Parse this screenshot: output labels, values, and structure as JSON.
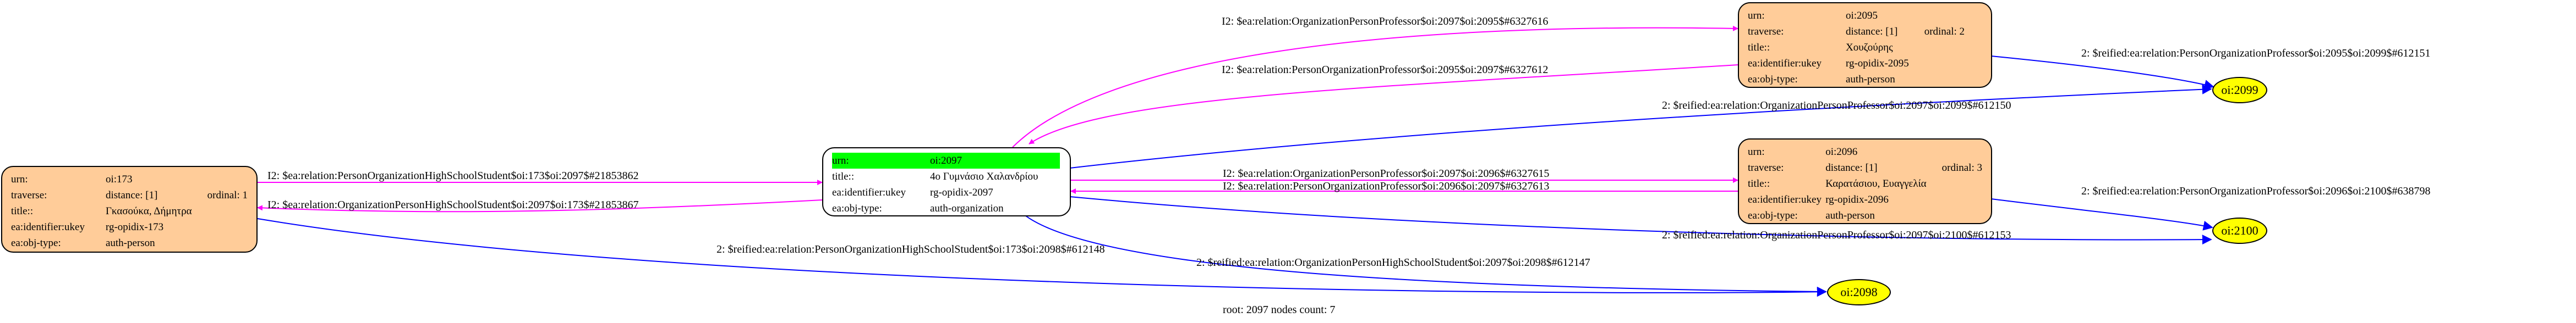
{
  "root_label": "root: 2097 nodes count: 7",
  "colors": {
    "node_fill": "#ffcc99",
    "root_highlight": "#00ff00",
    "ellipse_fill": "#ffff00",
    "edge_ea": "#ff00ff",
    "edge_reified": "#0000ff"
  },
  "nodes": {
    "n173": {
      "urn_k": "urn:",
      "urn_v": "oi:173",
      "trav_k": "traverse:",
      "trav_v": "distance: [1]",
      "ord": "ordinal: 1",
      "title_k": "title::",
      "title_v": "Γκασούκα, Δήμητρα",
      "ukey_k": "ea:identifier:ukey",
      "ukey_v": "rg-opidix-173",
      "type_k": "ea:obj-type:",
      "type_v": "auth-person"
    },
    "n2097": {
      "urn_k": "urn:",
      "urn_v": "oi:2097",
      "title_k": "title::",
      "title_v": "4ο Γυμνάσιο Χαλανδρίου",
      "ukey_k": "ea:identifier:ukey",
      "ukey_v": "rg-opidix-2097",
      "type_k": "ea:obj-type:",
      "type_v": "auth-organization"
    },
    "n2095": {
      "urn_k": "urn:",
      "urn_v": "oi:2095",
      "trav_k": "traverse:",
      "trav_v": "distance: [1]",
      "ord": "ordinal: 2",
      "title_k": "title::",
      "title_v": "Χουζούρης",
      "ukey_k": "ea:identifier:ukey",
      "ukey_v": "rg-opidix-2095",
      "type_k": "ea:obj-type:",
      "type_v": "auth-person"
    },
    "n2096": {
      "urn_k": "urn:",
      "urn_v": "oi:2096",
      "trav_k": "traverse:",
      "trav_v": "distance: [1]",
      "ord": "ordinal: 3",
      "title_k": "title::",
      "title_v": "Καρατάσιου, Ευαγγελία",
      "ukey_k": "ea:identifier:ukey",
      "ukey_v": "rg-opidix-2096",
      "type_k": "ea:obj-type:",
      "type_v": "auth-person"
    }
  },
  "ellipses": {
    "e2099": "oi:2099",
    "e2100": "oi:2100",
    "e2098": "oi:2098"
  },
  "edges": {
    "e1": "I2: $ea:relation:OrganizationPersonProfessor$oi:2097$oi:2095$#6327616",
    "e2": "I2: $ea:relation:PersonOrganizationProfessor$oi:2095$oi:2097$#6327612",
    "e3": "2: $reified:ea:relation:PersonOrganizationProfessor$oi:2095$oi:2099$#612151",
    "e4": "2: $reified:ea:relation:OrganizationPersonProfessor$oi:2097$oi:2099$#612150",
    "e5": "I2: $ea:relation:PersonOrganizationHighSchoolStudent$oi:173$oi:2097$#21853862",
    "e6": "I2: $ea:relation:OrganizationPersonHighSchoolStudent$oi:2097$oi:173$#21853867",
    "e7": "I2: $ea:relation:OrganizationPersonProfessor$oi:2097$oi:2096$#6327615",
    "e8": "I2: $ea:relation:PersonOrganizationProfessor$oi:2096$oi:2097$#6327613",
    "e9": "2: $reified:ea:relation:PersonOrganizationProfessor$oi:2096$oi:2100$#638798",
    "e10": "2: $reified:ea:relation:OrganizationPersonProfessor$oi:2097$oi:2100$#612153",
    "e11": "2: $reified:ea:relation:PersonOrganizationHighSchoolStudent$oi:173$oi:2098$#612148",
    "e12": "2: $reified:ea:relation:OrganizationPersonHighSchoolStudent$oi:2097$oi:2098$#612147"
  }
}
